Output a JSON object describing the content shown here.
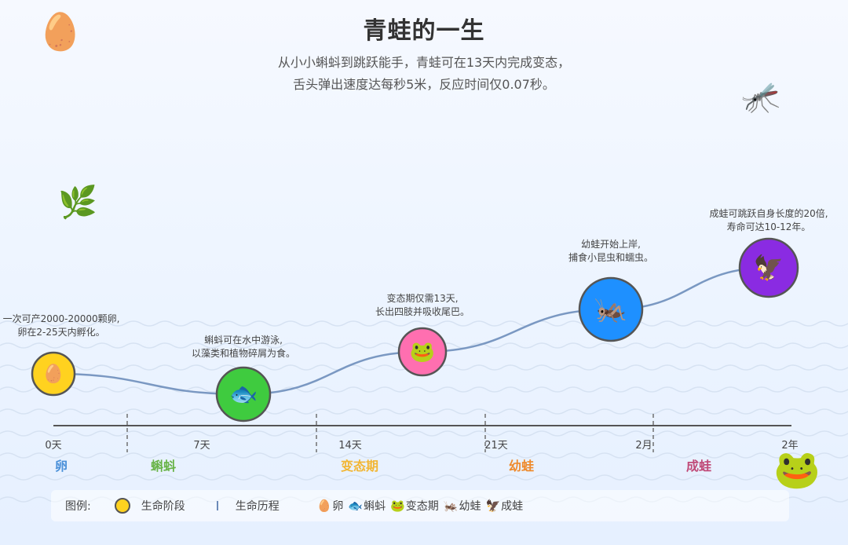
{
  "header": {
    "title": "青蛙的一生",
    "subtitle_line1": "从小小蝌蚪到跳跃能手，青蛙可在13天内完成变态，",
    "subtitle_line2": "舌头弹出速度达每秒5米，反应时间仅0.07秒。"
  },
  "decor": {
    "egg_icon": "🥚",
    "herb_icon": "🌿",
    "mosquito_icon": "🦟",
    "frog_icon": "🐸"
  },
  "stages": [
    {
      "name": "卵",
      "icon": "🥚",
      "color": "#FFD21F",
      "label_color": "#4a90d9",
      "note": [
        "一次可产2000-20000颗卵,",
        "卵在2-25天内孵化。"
      ]
    },
    {
      "name": "蝌蚪",
      "icon": "🐟",
      "color": "#3FCB3F",
      "label_color": "#67b346",
      "note": [
        "蝌蚪可在水中游泳,",
        "以藻类和植物碎屑为食。"
      ]
    },
    {
      "name": "变态期",
      "icon": "🐸",
      "color": "#FF6FB0",
      "label_color": "#f2b634",
      "note": [
        "变态期仅需13天,",
        "长出四肢并吸收尾巴。"
      ]
    },
    {
      "name": "幼蛙",
      "icon": "🦗",
      "color": "#1E90FF",
      "label_color": "#ee8a2c",
      "note": [
        "幼蛙开始上岸,",
        "捕食小昆虫和蠕虫。"
      ]
    },
    {
      "name": "成蛙",
      "icon": "🦅",
      "color": "#8A2BE2",
      "label_color": "#c04a78",
      "note": [
        "成蛙可跳跃自身长度的20倍,",
        "寿命可达10-12年。"
      ]
    }
  ],
  "timeline": {
    "ticks": [
      "0天",
      "7天",
      "14天",
      "21天",
      "2月",
      "2年"
    ]
  },
  "legend": {
    "title": "图例:",
    "stage_label": "生命阶段",
    "journey_label": "生命历程",
    "items": [
      {
        "icon": "🥚",
        "label": "卵"
      },
      {
        "icon": "🐟",
        "label": "蝌蚪"
      },
      {
        "icon": "🐸",
        "label": "变态期"
      },
      {
        "icon": "🦗",
        "label": "幼蛙"
      },
      {
        "icon": "🦅",
        "label": "成蛙"
      }
    ]
  }
}
